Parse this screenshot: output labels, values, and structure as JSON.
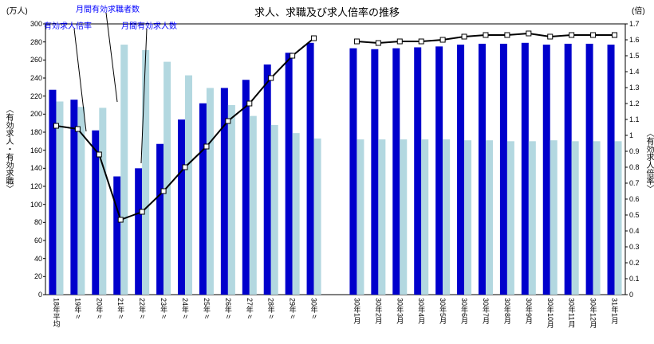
{
  "title": "求人、求職及び求人倍率の推移",
  "left_axis": {
    "unit": "(万人)",
    "title": "〈有効求人・有効求職〉",
    "max": 300,
    "min": 0,
    "ticks": [
      "300",
      "280",
      "260",
      "240",
      "220",
      "200",
      "180",
      "160",
      "140",
      "120",
      "100",
      "80",
      "60",
      "40",
      "20",
      "0"
    ]
  },
  "right_axis": {
    "unit": "(倍)",
    "title": "〈有効求人倍率〉",
    "max": 1.7,
    "min": 0,
    "ticks": [
      "1.7",
      "1.6",
      "1.5",
      "1.4",
      "1.3",
      "1.2",
      "1.1",
      "1",
      "0.9",
      "0.8",
      "0.7",
      "0.6",
      "0.5",
      "0.4",
      "0.3",
      "0.2",
      "0.1",
      "0"
    ]
  },
  "annotations": {
    "ratio_label": "有効求人倍率",
    "seekers_label": "月間有効求職者数",
    "offers_label": "月間有効求人数"
  },
  "colors": {
    "offers_bar": "#0000cc",
    "seekers_bar": "#b3d8e0",
    "ratio_line": "#000000",
    "annotation_text": "#0000ff"
  },
  "chart_data": {
    "type": "bar",
    "title": "求人、求職及び求人倍率の推移",
    "xlabel": "",
    "ylabel_left": "有効求人・有効求職 (万人)",
    "ylabel_right": "有効求人倍率 (倍)",
    "ylim_left": [
      0,
      300
    ],
    "ylim_right": [
      0,
      1.7
    ],
    "grid": false,
    "gap_after_index": 12,
    "categories": [
      "18年平均",
      "19年〃",
      "20年〃",
      "21年〃",
      "22年〃",
      "23年〃",
      "24年〃",
      "25年〃",
      "26年〃",
      "27年〃",
      "28年〃",
      "29年〃",
      "30年〃",
      "30年1月",
      "30年2月",
      "30年3月",
      "30年4月",
      "30年5月",
      "30年6月",
      "30年7月",
      "30年8月",
      "30年9月",
      "30年10月",
      "30年11月",
      "30年12月",
      "31年1月"
    ],
    "series": [
      {
        "name": "月間有効求人数",
        "type": "bar",
        "axis": "left",
        "color": "#0000cc",
        "values": [
          227,
          216,
          182,
          131,
          140,
          167,
          194,
          212,
          229,
          238,
          255,
          268,
          279,
          273,
          272,
          273,
          274,
          275,
          277,
          278,
          278,
          279,
          277,
          278,
          278,
          277
        ]
      },
      {
        "name": "月間有効求職者数",
        "type": "bar",
        "axis": "left",
        "color": "#b3d8e0",
        "values": [
          214,
          208,
          207,
          277,
          271,
          258,
          243,
          229,
          210,
          198,
          188,
          179,
          173,
          172,
          172,
          172,
          172,
          172,
          171,
          171,
          170,
          170,
          171,
          170,
          170,
          170
        ]
      },
      {
        "name": "有効求人倍率",
        "type": "line",
        "axis": "right",
        "color": "#000000",
        "values": [
          1.06,
          1.04,
          0.88,
          0.47,
          0.52,
          0.65,
          0.8,
          0.93,
          1.09,
          1.2,
          1.36,
          1.5,
          1.61,
          1.59,
          1.58,
          1.59,
          1.59,
          1.6,
          1.62,
          1.63,
          1.63,
          1.64,
          1.62,
          1.63,
          1.63,
          1.63
        ]
      }
    ]
  }
}
